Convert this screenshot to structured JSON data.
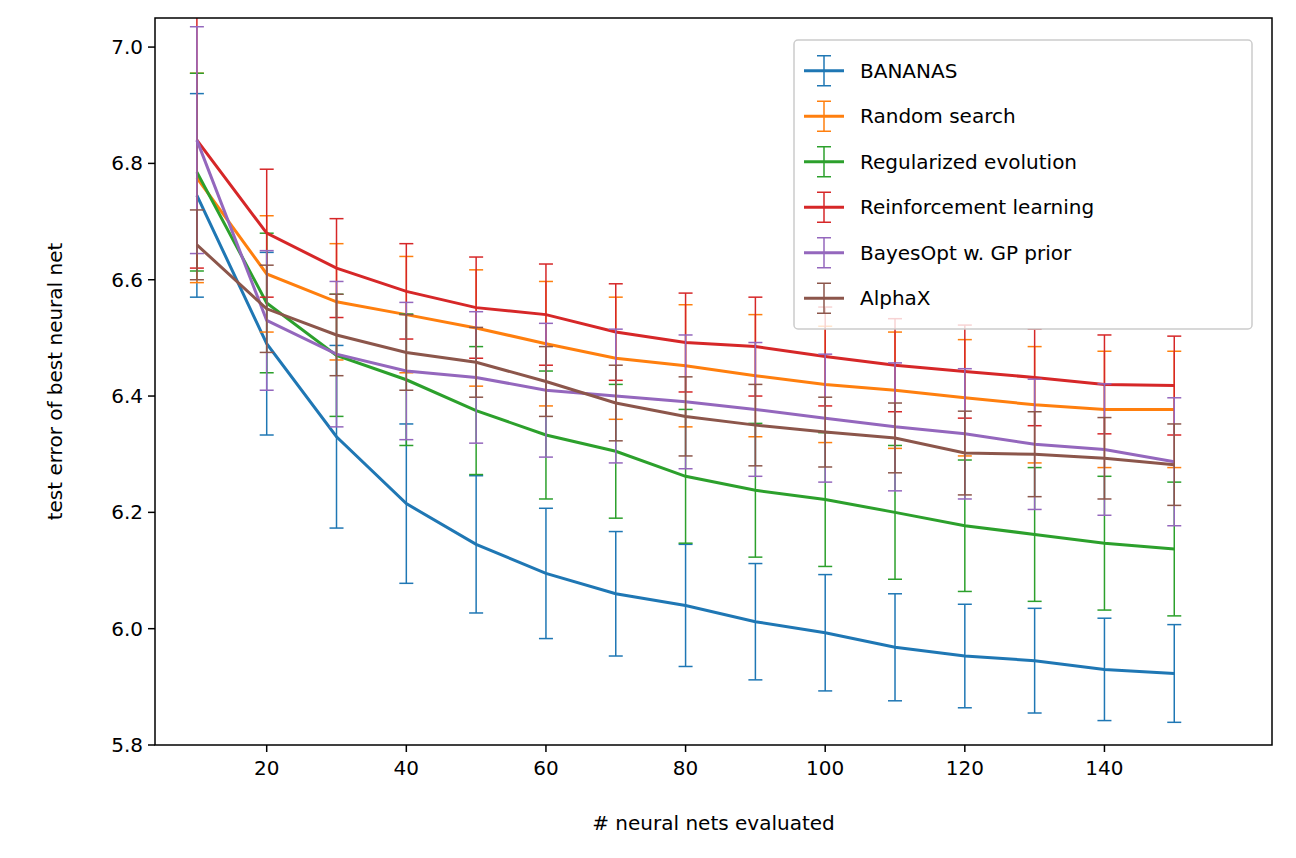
{
  "chart_data": {
    "type": "line",
    "xlabel": "# neural nets evaluated",
    "ylabel": "test error of best neural net",
    "x": [
      10,
      20,
      30,
      40,
      50,
      60,
      70,
      80,
      90,
      100,
      110,
      120,
      130,
      140,
      150
    ],
    "xlim": [
      4,
      164
    ],
    "xticks": [
      20,
      40,
      60,
      80,
      100,
      120,
      140
    ],
    "ylim": [
      5.8,
      7.05
    ],
    "yticks": [
      5.8,
      {
        "value": 6,
        "label": "6.0"
      },
      6.2,
      6.4,
      6.6,
      6.8,
      {
        "value": 7,
        "label": "7.0"
      }
    ],
    "grid": false,
    "legend": "upper right",
    "series": [
      {
        "name": "BANANAS",
        "color": "#1f77b4",
        "values": [
          6.745,
          6.49,
          6.33,
          6.215,
          6.145,
          6.095,
          6.06,
          6.04,
          6.012,
          5.993,
          5.968,
          5.953,
          5.945,
          5.93,
          5.923
        ],
        "errors": [
          0.175,
          0.157,
          0.157,
          0.137,
          0.118,
          0.112,
          0.107,
          0.105,
          0.1,
          0.1,
          0.092,
          0.089,
          0.09,
          0.088,
          0.084
        ]
      },
      {
        "name": "Random search",
        "color": "#ff7f0e",
        "values": [
          6.775,
          6.61,
          6.562,
          6.54,
          6.517,
          6.49,
          6.465,
          6.452,
          6.435,
          6.42,
          6.41,
          6.397,
          6.385,
          6.377,
          6.377
        ],
        "errors": [
          0.18,
          0.1,
          0.1,
          0.1,
          0.1,
          0.107,
          0.105,
          0.105,
          0.105,
          0.1,
          0.1,
          0.1,
          0.1,
          0.1,
          0.1
        ]
      },
      {
        "name": "Regularized evolution",
        "color": "#2ca02c",
        "values": [
          6.785,
          6.56,
          6.47,
          6.428,
          6.375,
          6.333,
          6.305,
          6.262,
          6.238,
          6.222,
          6.2,
          6.177,
          6.162,
          6.147,
          6.137
        ],
        "errors": [
          0.17,
          0.12,
          0.105,
          0.113,
          0.11,
          0.11,
          0.115,
          0.115,
          0.115,
          0.115,
          0.115,
          0.113,
          0.115,
          0.115,
          0.115
        ]
      },
      {
        "name": "Reinforcement learning",
        "color": "#d62728",
        "values": [
          6.84,
          6.68,
          6.62,
          6.58,
          6.552,
          6.54,
          6.51,
          6.492,
          6.485,
          6.468,
          6.453,
          6.442,
          6.432,
          6.42,
          6.418
        ],
        "errors": [
          0.22,
          0.11,
          0.085,
          0.082,
          0.087,
          0.087,
          0.083,
          0.085,
          0.085,
          0.085,
          0.08,
          0.08,
          0.083,
          0.085,
          0.085
        ]
      },
      {
        "name": "BayesOpt w. GP prior",
        "color": "#9467bd",
        "values": [
          6.84,
          6.53,
          6.472,
          6.443,
          6.432,
          6.41,
          6.4,
          6.39,
          6.377,
          6.362,
          6.347,
          6.335,
          6.317,
          6.308,
          6.287
        ],
        "errors": [
          0.195,
          0.12,
          0.125,
          0.118,
          0.113,
          0.115,
          0.115,
          0.115,
          0.115,
          0.11,
          0.11,
          0.112,
          0.112,
          0.113,
          0.11
        ]
      },
      {
        "name": "AlphaX",
        "color": "#8c564b",
        "values": [
          6.66,
          6.55,
          6.505,
          6.475,
          6.458,
          6.425,
          6.388,
          6.365,
          6.35,
          6.338,
          6.328,
          6.302,
          6.3,
          6.293,
          6.282
        ],
        "errors": [
          0.06,
          0.075,
          0.07,
          0.065,
          0.06,
          0.06,
          0.065,
          0.068,
          0.07,
          0.06,
          0.06,
          0.072,
          0.073,
          0.07,
          0.07
        ]
      }
    ]
  }
}
